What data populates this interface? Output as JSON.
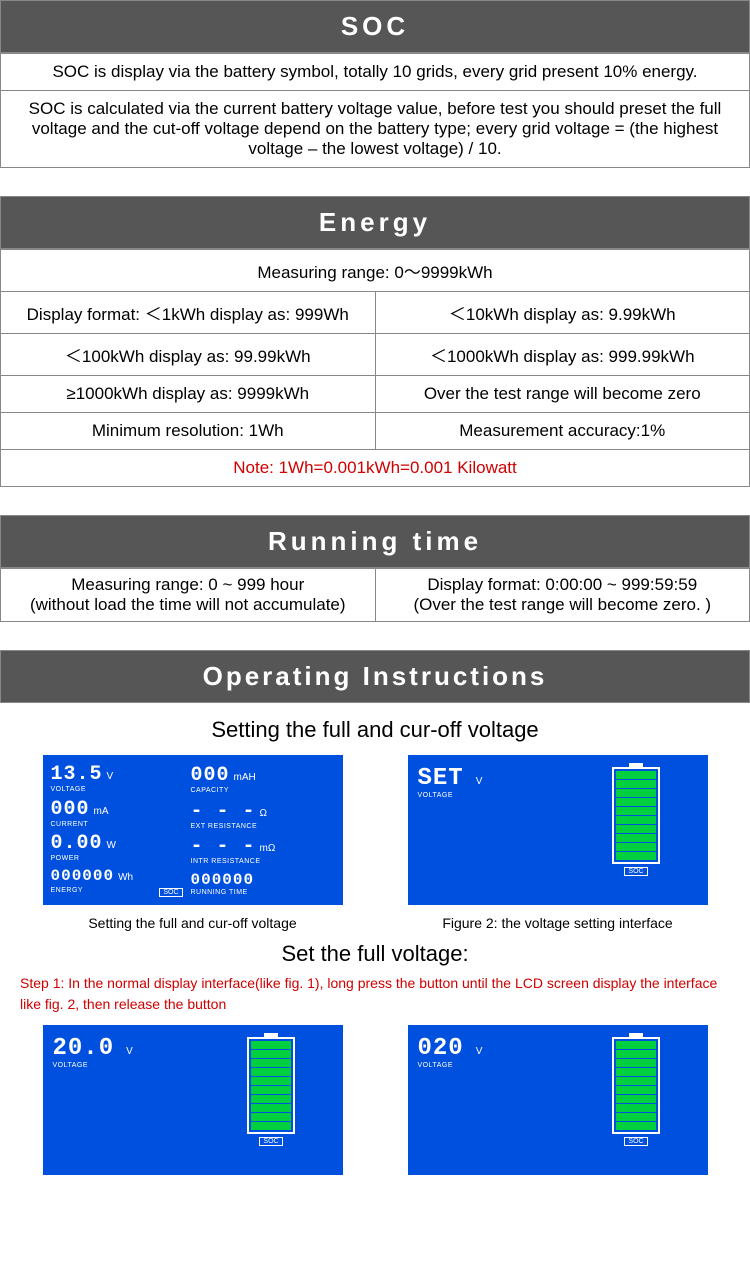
{
  "colors": {
    "header_bg": "#565656",
    "header_fg": "#ffffff",
    "border": "#888888",
    "note_red": "#d00000",
    "lcd_bg": "#0050e0",
    "lcd_fg": "#ffffff",
    "batt_green": "#00d040"
  },
  "soc": {
    "title": "SOC",
    "row1": "SOC is display via the battery symbol, totally 10 grids, every grid present 10% energy.",
    "row2": "SOC is calculated via the current battery voltage value, before test you should preset the full voltage and the cut-off voltage depend on the battery type; every grid voltage = (the highest voltage – the lowest voltage) / 10."
  },
  "energy": {
    "title": "Energy",
    "range": "Measuring range: 0～9999kWh",
    "cells": [
      [
        "Display format: ＜1kWh display as: 999Wh",
        "＜10kWh display as: 9.99kWh"
      ],
      [
        "＜100kWh display as: 99.99kWh",
        "＜1000kWh display as: 999.99kWh"
      ],
      [
        "≥1000kWh display as: 9999kWh",
        "Over the test range will become zero"
      ],
      [
        "Minimum resolution: 1Wh",
        "Measurement accuracy:1%"
      ]
    ],
    "note": "Note: 1Wh=0.001kWh=0.001 Kilowatt"
  },
  "running": {
    "title": "Running time",
    "left_top": "Measuring range: 0 ~ 999 hour",
    "left_bot": "(without load the time will not accumulate)",
    "right_top": "Display format: 0:00:00 ~ 999:59:59",
    "right_bot": "(Over the test range will become zero. )"
  },
  "operating": {
    "title": "Operating Instructions",
    "sub1": "Setting the full and cur-off voltage",
    "cap1": "Setting the full and cur-off voltage",
    "cap2": "Figure 2: the voltage setting interface",
    "sub2": "Set the full voltage:",
    "step1": "Step 1: In the normal display interface(like fig. 1), long press the button until the LCD screen display the interface like fig. 2, then release the button"
  },
  "lcd1": {
    "voltage_val": "13.5",
    "voltage_unit": "V",
    "voltage_label": "VOLTAGE",
    "current_val": "000",
    "current_unit": "mA",
    "current_label": "CURRENT",
    "power_val": "0.00",
    "power_unit": "W",
    "power_label": "POWER",
    "energy_val": "000000",
    "energy_unit": "Wh",
    "energy_label": "ENERGY",
    "capacity_val": "000",
    "capacity_unit": "mAH",
    "capacity_label": "CAPACITY",
    "extres_val": "- - -",
    "extres_unit": "Ω",
    "extres_label": "EXT RESISTANCE",
    "intres_val": "- - -",
    "intres_unit": "mΩ",
    "intres_label": "INTR RESISTANCE",
    "runtime_val": "000000",
    "runtime_label": "RUNNING TIME",
    "soc_label": "SOC"
  },
  "lcd2": {
    "voltage_val": "SET",
    "voltage_unit": "V",
    "voltage_label": "VOLTAGE",
    "soc_label": "SOC",
    "bars_filled": 10
  },
  "lcd3": {
    "voltage_val": "20.0",
    "voltage_unit": "V",
    "voltage_label": "VOLTAGE",
    "soc_label": "SOC",
    "bars_filled": 10
  },
  "lcd4": {
    "voltage_val": "020",
    "voltage_unit": "V",
    "voltage_label": "VOLTAGE",
    "soc_label": "SOC",
    "bars_filled": 10
  }
}
